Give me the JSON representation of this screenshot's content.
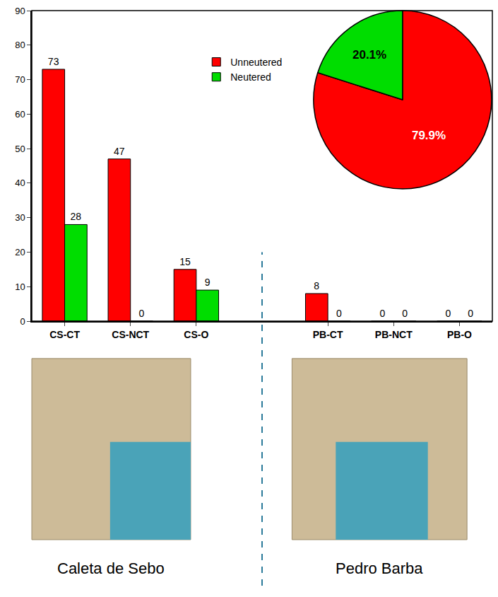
{
  "chart_data": [
    {
      "type": "bar",
      "categories": [
        "CS-CT",
        "CS-NCT",
        "CS-O",
        null,
        "PB-CT",
        "PB-NCT",
        "PB-O"
      ],
      "series": [
        {
          "name": "Unneutered",
          "color": "#ff0000",
          "values": [
            73,
            47,
            15,
            null,
            8,
            0,
            0
          ]
        },
        {
          "name": "Neutered",
          "color": "#00dd00",
          "values": [
            28,
            0,
            9,
            null,
            0,
            0,
            0
          ]
        }
      ],
      "ylim": [
        0,
        90
      ],
      "yticks": [
        0,
        10,
        20,
        30,
        40,
        50,
        60,
        70,
        80,
        90
      ],
      "grid": false,
      "legend": "top",
      "data_labels": true
    },
    {
      "type": "pie",
      "categories": [
        "Unneutered",
        "Neutered"
      ],
      "values": [
        79.9,
        20.1
      ],
      "value_labels": [
        "79.9%",
        "20.1%"
      ],
      "colors": [
        "#ff0000",
        "#00dd00"
      ]
    }
  ],
  "maps": [
    {
      "label": "Caleta de Sebo"
    },
    {
      "label": "Pedro Barba"
    }
  ]
}
